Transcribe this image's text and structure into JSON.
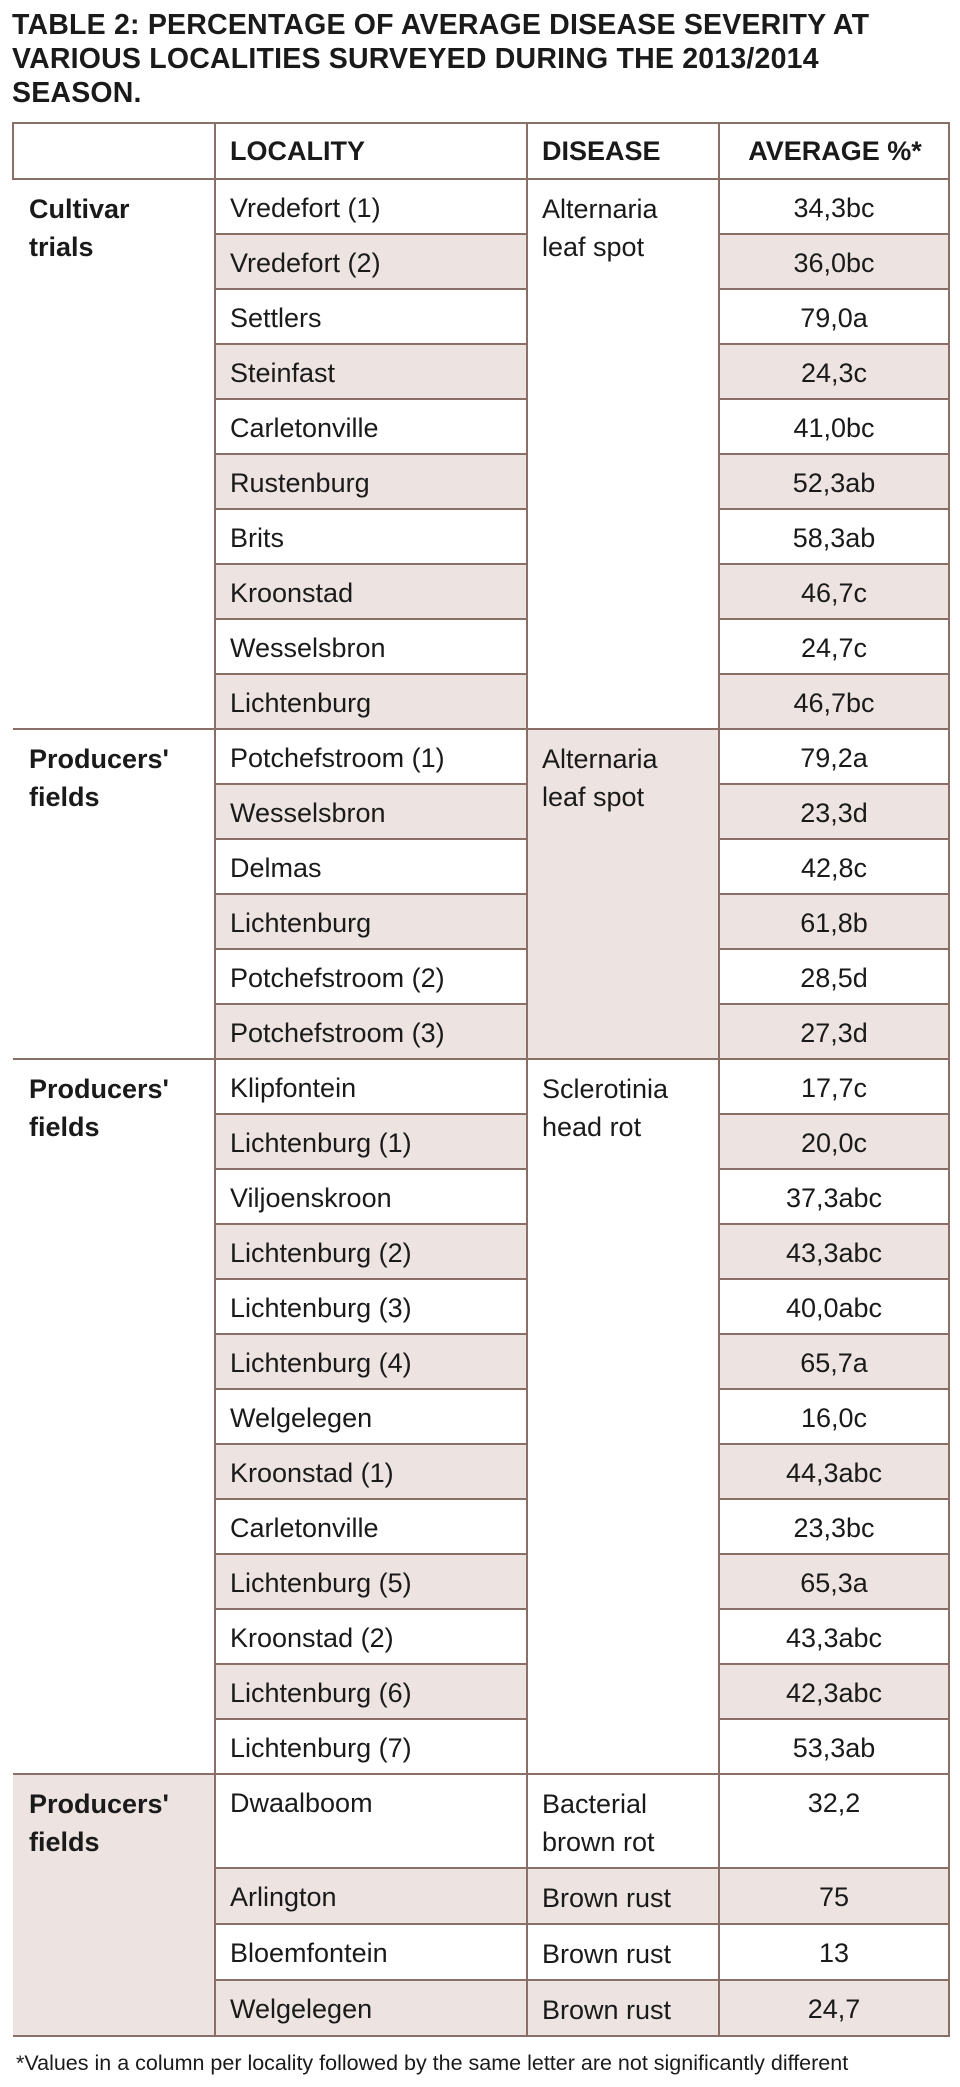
{
  "title_line1": "TABLE 2: PERCENTAGE OF AVERAGE DISEASE SEVERITY AT",
  "title_line2": "VARIOUS LOCALITIES SURVEYED DURING THE 2013/2014 SEASON.",
  "headers": {
    "group": "",
    "locality": "LOCALITY",
    "disease": "DISEASE",
    "average": "AVERAGE %*"
  },
  "groups": [
    {
      "label_line1": "Cultivar",
      "label_line2": "trials",
      "disease_line1": "Alternaria",
      "disease_line2": "leaf spot",
      "rows": [
        {
          "locality": "Vredefort (1)",
          "average": "34,3bc"
        },
        {
          "locality": "Vredefort (2)",
          "average": "36,0bc"
        },
        {
          "locality": "Settlers",
          "average": "79,0a"
        },
        {
          "locality": "Steinfast",
          "average": "24,3c"
        },
        {
          "locality": "Carletonville",
          "average": "41,0bc"
        },
        {
          "locality": "Rustenburg",
          "average": "52,3ab"
        },
        {
          "locality": "Brits",
          "average": "58,3ab"
        },
        {
          "locality": "Kroonstad",
          "average": "46,7c"
        },
        {
          "locality": "Wesselsbron",
          "average": "24,7c"
        },
        {
          "locality": "Lichtenburg",
          "average": "46,7bc"
        }
      ]
    },
    {
      "label_line1": "Producers'",
      "label_line2": "fields",
      "disease_line1": "Alternaria",
      "disease_line2": "leaf spot",
      "rows": [
        {
          "locality": "Potchefstroom (1)",
          "average": "79,2a"
        },
        {
          "locality": "Wesselsbron",
          "average": "23,3d"
        },
        {
          "locality": "Delmas",
          "average": "42,8c"
        },
        {
          "locality": "Lichtenburg",
          "average": "61,8b"
        },
        {
          "locality": "Potchefstroom (2)",
          "average": "28,5d"
        },
        {
          "locality": "Potchefstroom (3)",
          "average": "27,3d"
        }
      ]
    },
    {
      "label_line1": "Producers'",
      "label_line2": "fields",
      "disease_line1": "Sclerotinia",
      "disease_line2": "head rot",
      "rows": [
        {
          "locality": "Klipfontein",
          "average": "17,7c"
        },
        {
          "locality": "Lichtenburg (1)",
          "average": "20,0c"
        },
        {
          "locality": "Viljoenskroon",
          "average": "37,3abc"
        },
        {
          "locality": "Lichtenburg (2)",
          "average": "43,3abc"
        },
        {
          "locality": "Lichtenburg (3)",
          "average": "40,0abc"
        },
        {
          "locality": "Lichtenburg (4)",
          "average": "65,7a"
        },
        {
          "locality": "Welgelegen",
          "average": "16,0c"
        },
        {
          "locality": "Kroonstad (1)",
          "average": "44,3abc"
        },
        {
          "locality": "Carletonville",
          "average": "23,3bc"
        },
        {
          "locality": "Lichtenburg (5)",
          "average": "65,3a"
        },
        {
          "locality": "Kroonstad (2)",
          "average": "43,3abc"
        },
        {
          "locality": "Lichtenburg (6)",
          "average": "42,3abc"
        },
        {
          "locality": "Lichtenburg (7)",
          "average": "53,3ab"
        }
      ]
    },
    {
      "label_line1": "Producers'",
      "label_line2": "fields",
      "rows": [
        {
          "locality": "Dwaalboom",
          "disease_line1": "Bacterial",
          "disease_line2": "brown rot",
          "average": "32,2"
        },
        {
          "locality": "Arlington",
          "disease_line1": "Brown rust",
          "average": "75"
        },
        {
          "locality": "Bloemfontein",
          "disease_line1": "Brown rust",
          "average": "13"
        },
        {
          "locality": "Welgelegen",
          "disease_line1": "Brown rust",
          "average": "24,7"
        }
      ]
    }
  ],
  "footnote": "*Values in a column per locality followed by the same letter are not significantly different"
}
